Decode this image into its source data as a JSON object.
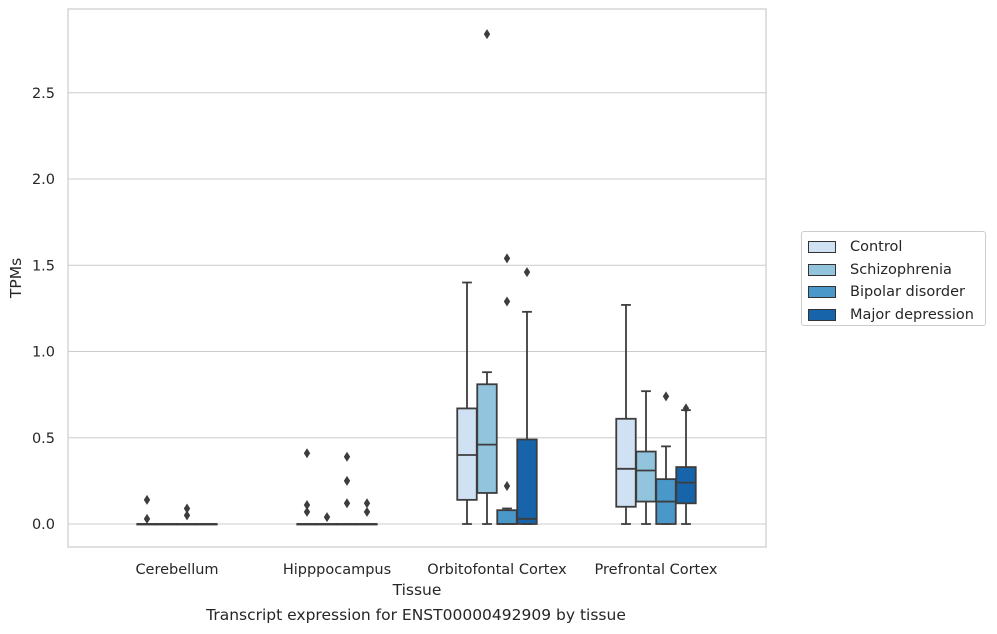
{
  "chart_data": {
    "type": "box",
    "title": "Transcript expression for ENST00000492909 by tissue",
    "xlabel": "Tissue",
    "ylabel": "TPMs",
    "ylim": [
      -0.14,
      2.99
    ],
    "yticks": [
      0.0,
      0.5,
      1.0,
      1.5,
      2.0,
      2.5
    ],
    "ytick_labels": [
      "0.0",
      "0.5",
      "1.0",
      "1.5",
      "2.0",
      "2.5"
    ],
    "categories": [
      "Cerebellum",
      "Hipppocampus",
      "Orbitofontal Cortex",
      "Prefrontal Cortex"
    ],
    "grid": "horizontal",
    "legend_position": "right",
    "series": [
      {
        "name": "Control",
        "color": "#cfe1f2",
        "boxes": [
          {
            "min": 0,
            "q1": 0,
            "median": 0,
            "q3": 0,
            "max": 0,
            "outliers": [
              0.14,
              0.03
            ]
          },
          {
            "min": 0,
            "q1": 0,
            "median": 0,
            "q3": 0,
            "max": 0,
            "outliers": [
              0.41,
              0.11,
              0.07
            ]
          },
          {
            "min": 0,
            "q1": 0.14,
            "median": 0.4,
            "q3": 0.67,
            "max": 1.4,
            "outliers": []
          },
          {
            "min": 0,
            "q1": 0.1,
            "median": 0.32,
            "q3": 0.61,
            "max": 1.27,
            "outliers": []
          }
        ]
      },
      {
        "name": "Schizophrenia",
        "color": "#93c4de",
        "boxes": [
          {
            "min": 0,
            "q1": 0,
            "median": 0,
            "q3": 0,
            "max": 0,
            "outliers": []
          },
          {
            "min": 0,
            "q1": 0,
            "median": 0,
            "q3": 0,
            "max": 0,
            "outliers": [
              0.04
            ]
          },
          {
            "min": 0,
            "q1": 0.18,
            "median": 0.46,
            "q3": 0.81,
            "max": 0.88,
            "outliers": [
              2.84
            ]
          },
          {
            "min": 0,
            "q1": 0.13,
            "median": 0.31,
            "q3": 0.42,
            "max": 0.77,
            "outliers": []
          }
        ]
      },
      {
        "name": "Bipolar disorder",
        "color": "#4a98c9",
        "boxes": [
          {
            "min": 0,
            "q1": 0,
            "median": 0,
            "q3": 0,
            "max": 0,
            "outliers": [
              0.09,
              0.05
            ]
          },
          {
            "min": 0,
            "q1": 0,
            "median": 0,
            "q3": 0,
            "max": 0,
            "outliers": [
              0.39,
              0.25,
              0.12
            ]
          },
          {
            "min": 0,
            "q1": 0,
            "median": 0,
            "q3": 0.08,
            "max": 0.09,
            "outliers": [
              1.54,
              1.29,
              0.22
            ]
          },
          {
            "min": 0,
            "q1": 0,
            "median": 0.13,
            "q3": 0.26,
            "max": 0.45,
            "outliers": [
              0.74
            ]
          }
        ]
      },
      {
        "name": "Major depression",
        "color": "#1764ab",
        "boxes": [
          {
            "min": 0,
            "q1": 0,
            "median": 0,
            "q3": 0,
            "max": 0,
            "outliers": []
          },
          {
            "min": 0,
            "q1": 0,
            "median": 0,
            "q3": 0,
            "max": 0,
            "outliers": [
              0.12,
              0.07
            ]
          },
          {
            "min": 0,
            "q1": 0,
            "median": 0.03,
            "q3": 0.49,
            "max": 1.23,
            "outliers": [
              1.46
            ]
          },
          {
            "min": 0,
            "q1": 0.12,
            "median": 0.24,
            "q3": 0.33,
            "max": 0.66,
            "outliers": [
              0.67
            ]
          }
        ]
      }
    ]
  }
}
